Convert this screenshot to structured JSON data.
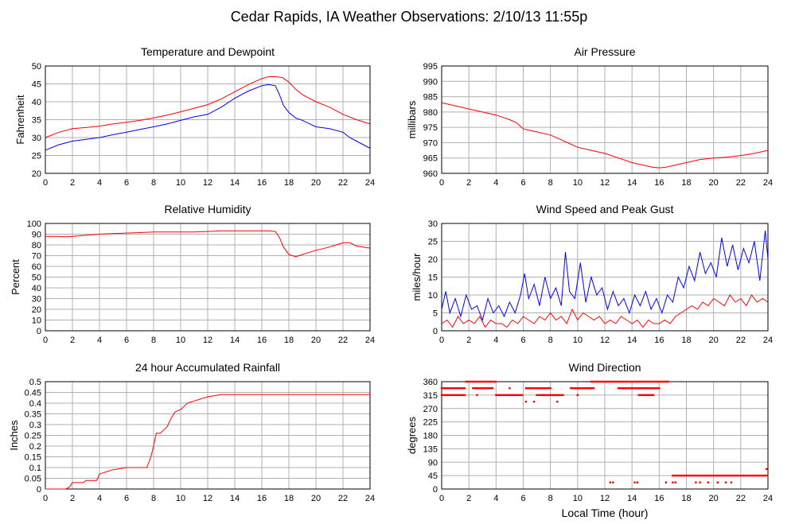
{
  "figure": {
    "title": "Cedar Rapids, IA Weather Observations: 2/10/13 11:55p",
    "xlabel": "Local Time (hour)"
  },
  "chart_data": [
    {
      "id": "temp",
      "type": "line",
      "title": "Temperature and Dewpoint",
      "ylabel": "Fahrenheit",
      "xlim": [
        0,
        24
      ],
      "ylim": [
        20,
        50
      ],
      "xticks": [
        0,
        2,
        4,
        6,
        8,
        10,
        12,
        14,
        16,
        18,
        20,
        22,
        24
      ],
      "yticks": [
        20,
        25,
        30,
        35,
        40,
        45,
        50
      ],
      "grid": true,
      "series": [
        {
          "color": "#ff0000",
          "x": [
            0,
            1,
            2,
            3,
            4,
            5,
            6,
            7,
            8,
            9,
            10,
            11,
            12,
            13,
            14,
            15,
            16,
            16.5,
            17,
            17.5,
            18,
            18.5,
            19,
            20,
            21,
            22,
            23,
            24
          ],
          "values": [
            30,
            31.5,
            32.5,
            32.8,
            33.2,
            33.8,
            34.3,
            34.8,
            35.5,
            36.3,
            37.2,
            38.2,
            39.2,
            40.8,
            42.8,
            44.8,
            46.5,
            47,
            47,
            46.8,
            45.5,
            43.5,
            42,
            40,
            38.5,
            36.5,
            35,
            33.8
          ]
        },
        {
          "color": "#0000ff",
          "x": [
            0,
            1,
            2,
            3,
            4,
            5,
            6,
            7,
            8,
            9,
            10,
            11,
            12,
            13,
            14,
            15,
            16,
            16.5,
            17,
            17.3,
            17.6,
            18,
            18.5,
            19,
            20,
            21,
            22,
            22.5,
            23,
            24
          ],
          "values": [
            26.5,
            28,
            29,
            29.5,
            30,
            30.8,
            31.5,
            32.3,
            33,
            33.8,
            34.8,
            35.8,
            36.5,
            38.5,
            41,
            43,
            44.5,
            44.8,
            44.5,
            42,
            39,
            37,
            35.5,
            34.8,
            33,
            32.5,
            31.5,
            30,
            29,
            27
          ]
        }
      ]
    },
    {
      "id": "pressure",
      "type": "line",
      "title": "Air Pressure",
      "ylabel": "millibars",
      "xlim": [
        0,
        24
      ],
      "ylim": [
        960,
        995
      ],
      "xticks": [
        0,
        2,
        4,
        6,
        8,
        10,
        12,
        14,
        16,
        18,
        20,
        22,
        24
      ],
      "yticks": [
        960,
        965,
        970,
        975,
        980,
        985,
        990,
        995
      ],
      "grid": true,
      "series": [
        {
          "color": "#ff0000",
          "x": [
            0,
            1,
            2,
            3,
            4,
            5,
            5.5,
            6,
            6.5,
            7,
            8,
            9,
            10,
            10.5,
            11,
            12,
            13,
            14,
            15,
            15.5,
            16,
            16.5,
            17,
            18,
            19,
            20,
            21,
            22,
            23,
            24
          ],
          "values": [
            983,
            982,
            981,
            980,
            979,
            977.5,
            976.5,
            974.5,
            974,
            973.5,
            972.5,
            970.5,
            968.5,
            968,
            967.5,
            966.5,
            965,
            963.5,
            962.5,
            962,
            961.8,
            962,
            962.5,
            963.5,
            964.5,
            965,
            965.3,
            965.8,
            966.5,
            967.5
          ]
        }
      ]
    },
    {
      "id": "humidity",
      "type": "line",
      "title": "Relative Humidity",
      "ylabel": "Percent",
      "xlim": [
        0,
        24
      ],
      "ylim": [
        0,
        100
      ],
      "xticks": [
        0,
        2,
        4,
        6,
        8,
        10,
        12,
        14,
        16,
        18,
        20,
        22,
        24
      ],
      "yticks": [
        0,
        10,
        20,
        30,
        40,
        50,
        60,
        70,
        80,
        90,
        100
      ],
      "grid": true,
      "series": [
        {
          "color": "#ff0000",
          "x": [
            0,
            1,
            1.5,
            2,
            3,
            4,
            5,
            6,
            7,
            8,
            9,
            10,
            11,
            12,
            13,
            14,
            15,
            16,
            16.5,
            17,
            17.3,
            17.6,
            18,
            18.5,
            19,
            20,
            21,
            21.5,
            22,
            22.5,
            23,
            24
          ],
          "values": [
            88,
            88,
            87.5,
            88,
            89,
            90,
            90.5,
            91,
            91.5,
            92,
            92,
            92,
            92,
            92.5,
            93,
            93,
            93,
            93,
            93,
            92.5,
            87,
            78,
            71,
            69,
            71,
            75,
            78,
            80,
            82,
            82,
            79,
            77
          ]
        }
      ]
    },
    {
      "id": "wind",
      "type": "line",
      "title": "Wind Speed and Peak Gust",
      "ylabel": "miles/hour",
      "xlim": [
        0,
        24
      ],
      "ylim": [
        0,
        30
      ],
      "xticks": [
        0,
        2,
        4,
        6,
        8,
        10,
        12,
        14,
        16,
        18,
        20,
        22,
        24
      ],
      "yticks": [
        0,
        5,
        10,
        15,
        20,
        25,
        30
      ],
      "grid": true,
      "series": [
        {
          "color": "#0000ff",
          "x": [
            0,
            0.3,
            0.6,
            1,
            1.4,
            1.8,
            2.2,
            2.6,
            3,
            3.4,
            3.8,
            4.2,
            4.6,
            5,
            5.4,
            5.8,
            6.1,
            6.4,
            6.8,
            7.2,
            7.6,
            8,
            8.4,
            8.8,
            9.1,
            9.4,
            9.8,
            10.2,
            10.6,
            11,
            11.4,
            11.8,
            12.2,
            12.6,
            13,
            13.4,
            13.8,
            14.2,
            14.6,
            15,
            15.4,
            15.8,
            16.2,
            16.6,
            17,
            17.4,
            17.8,
            18.2,
            18.6,
            19,
            19.4,
            19.8,
            20.2,
            20.6,
            21,
            21.4,
            21.8,
            22.2,
            22.6,
            23,
            23.4,
            23.8,
            24
          ],
          "values": [
            6,
            11,
            5,
            9,
            4,
            10,
            6,
            7,
            3,
            9,
            5,
            7,
            4,
            8,
            5,
            10,
            16,
            9,
            13,
            7,
            15,
            9,
            12,
            7,
            22,
            11,
            9,
            19,
            8,
            15,
            10,
            12,
            6,
            11,
            7,
            9,
            5,
            10,
            7,
            11,
            6,
            9,
            5,
            10,
            8,
            15,
            12,
            18,
            14,
            22,
            16,
            19,
            15,
            26,
            18,
            24,
            17,
            23,
            19,
            25,
            14,
            28,
            20
          ]
        },
        {
          "color": "#ff0000",
          "x": [
            0,
            0.4,
            0.8,
            1.2,
            1.6,
            2,
            2.4,
            2.8,
            3.2,
            3.6,
            4,
            4.4,
            4.8,
            5.2,
            5.6,
            6,
            6.4,
            6.8,
            7.2,
            7.6,
            8,
            8.4,
            8.8,
            9.2,
            9.6,
            10,
            10.4,
            10.8,
            11.2,
            11.6,
            12,
            12.4,
            12.8,
            13.2,
            13.6,
            14,
            14.4,
            14.8,
            15.2,
            15.6,
            16,
            16.4,
            16.8,
            17.2,
            17.6,
            18,
            18.4,
            18.8,
            19.2,
            19.6,
            20,
            20.4,
            20.8,
            21.2,
            21.6,
            22,
            22.4,
            22.8,
            23.2,
            23.6,
            24
          ],
          "values": [
            2,
            3,
            1,
            4,
            2,
            3,
            2,
            4,
            1,
            3,
            2,
            2,
            1,
            3,
            2,
            4,
            3,
            2,
            4,
            3,
            5,
            3,
            4,
            2,
            6,
            3,
            5,
            4,
            3,
            4,
            2,
            3,
            2,
            4,
            3,
            2,
            3,
            1,
            3,
            2,
            2,
            3,
            2,
            4,
            5,
            6,
            7,
            6,
            8,
            7,
            9,
            8,
            7,
            10,
            8,
            9,
            7,
            10,
            8,
            9,
            8
          ]
        }
      ]
    },
    {
      "id": "rain",
      "type": "line",
      "title": "24 hour Accumulated Rainfall",
      "ylabel": "Inches",
      "xlim": [
        0,
        24
      ],
      "ylim": [
        0,
        0.5
      ],
      "xticks": [
        0,
        2,
        4,
        6,
        8,
        10,
        12,
        14,
        16,
        18,
        20,
        22,
        24
      ],
      "yticks": [
        0,
        0.05,
        0.1,
        0.15,
        0.2,
        0.25,
        0.3,
        0.35,
        0.4,
        0.45,
        0.5
      ],
      "grid": true,
      "series": [
        {
          "color": "#ff0000",
          "x": [
            0,
            1.5,
            1.8,
            2,
            2.8,
            3,
            3.8,
            4,
            4.5,
            5,
            5.5,
            6,
            7,
            7.5,
            7.8,
            8,
            8.2,
            8.5,
            9,
            9.3,
            9.6,
            10,
            10.5,
            11,
            11.5,
            12,
            12.5,
            13,
            16,
            24
          ],
          "values": [
            0,
            0,
            0.01,
            0.03,
            0.03,
            0.04,
            0.04,
            0.07,
            0.08,
            0.09,
            0.095,
            0.1,
            0.1,
            0.1,
            0.15,
            0.2,
            0.26,
            0.26,
            0.29,
            0.33,
            0.36,
            0.37,
            0.4,
            0.41,
            0.42,
            0.43,
            0.435,
            0.44,
            0.44,
            0.44
          ]
        }
      ]
    },
    {
      "id": "direction",
      "type": "scatter",
      "title": "Wind Direction",
      "ylabel": "degrees",
      "xlim": [
        0,
        24
      ],
      "ylim": [
        0,
        360
      ],
      "xticks": [
        0,
        2,
        4,
        6,
        8,
        10,
        12,
        14,
        16,
        18,
        20,
        22,
        24
      ],
      "yticks": [
        0,
        45,
        90,
        135,
        180,
        225,
        270,
        315,
        360
      ],
      "grid": true,
      "series": [
        {
          "color": "#ff0000",
          "segments": [
            {
              "x0": 0,
              "x1": 1.7,
              "y": 315
            },
            {
              "x0": 0,
              "x1": 1.7,
              "y": 338
            },
            {
              "x0": 1.8,
              "x1": 4,
              "y": 360
            },
            {
              "x0": 2.3,
              "x1": 3.8,
              "y": 338
            },
            {
              "x0": 4,
              "x1": 6,
              "y": 315
            },
            {
              "x0": 6.2,
              "x1": 8,
              "y": 338
            },
            {
              "x0": 7,
              "x1": 9,
              "y": 315
            },
            {
              "x0": 9.5,
              "x1": 11.2,
              "y": 338
            },
            {
              "x0": 11,
              "x1": 16.7,
              "y": 360
            },
            {
              "x0": 13,
              "x1": 16,
              "y": 338
            },
            {
              "x0": 14.5,
              "x1": 15.6,
              "y": 315
            },
            {
              "x0": 17,
              "x1": 24,
              "y": 45
            }
          ],
          "points": [
            [
              2.6,
              315
            ],
            [
              5,
              338
            ],
            [
              6.2,
              293
            ],
            [
              6.8,
              293
            ],
            [
              8.5,
              293
            ],
            [
              10,
              315
            ],
            [
              12.4,
              22
            ],
            [
              12.6,
              22
            ],
            [
              14.2,
              22
            ],
            [
              14.4,
              22
            ],
            [
              16.5,
              22
            ],
            [
              17,
              22
            ],
            [
              17.2,
              22
            ],
            [
              19,
              22
            ],
            [
              19.6,
              22
            ],
            [
              20.3,
              22
            ],
            [
              20.9,
              22
            ],
            [
              21.3,
              22
            ],
            [
              23.9,
              67
            ],
            [
              18.7,
              22
            ]
          ]
        }
      ]
    }
  ]
}
